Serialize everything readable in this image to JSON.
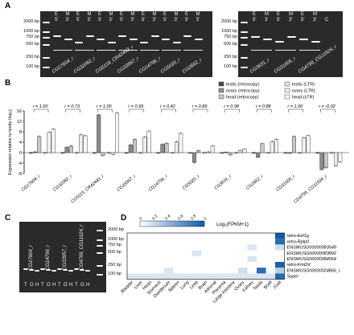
{
  "panels": {
    "A": {
      "letter": "A",
      "ladder_left": [
        "2000 bp",
        "1000 bp",
        "750 bp",
        "500 bp",
        "250 bp",
        "100 bp"
      ],
      "ladder_right": [
        "2000 bp",
        "1000 bp",
        "750 bp",
        "500 bp",
        "250 bp",
        "100 bp"
      ],
      "lane_headers_left": [
        "5'",
        "3'",
        "5'",
        "3'",
        "5'",
        "3'",
        "5'",
        "3'",
        "5'",
        "3'",
        "5'",
        "3'",
        "5'",
        "3'"
      ],
      "lane_headers_left_top": [
        "E",
        "M",
        "E",
        "M",
        "E",
        "M",
        "E",
        "M",
        "E",
        "M",
        "E",
        "M",
        "E",
        "M"
      ],
      "lane_headers_right": [
        "5'",
        "3'",
        "5'",
        "3'",
        "5'",
        "3'",
        "C"
      ],
      "lane_headers_right_top": [
        "E",
        "M",
        "E",
        "M",
        "E",
        "M",
        ""
      ],
      "gene_labels_left": [
        "CG17604_r",
        "CG32082_r",
        "CG5119_CR42443_r",
        "CG33957_r",
        "CG14796_r",
        "CG5020_r",
        "CG2662_r"
      ],
      "gene_labels_right": [
        "CG3631_r",
        "CG31605_r",
        "CG4799_CG11924_r"
      ]
    },
    "B": {
      "letter": "B",
      "legend": [
        {
          "label": "testis (retrocopy)",
          "color": "#4a4a4a"
        },
        {
          "label": "ovary (retrocopy)",
          "color": "#8c8c8c"
        },
        {
          "label": "head (retrocopy)",
          "color": "#c8c8c8"
        },
        {
          "label": "testis (LTR)",
          "color": "#e6e6e6"
        },
        {
          "label": "ovary (LTR)",
          "color": "#efefef"
        },
        {
          "label": "head (LTR)",
          "color": "#f7f7f7"
        }
      ],
      "r_values": [
        "r = 1.00",
        "r = 0.73",
        "r = 1.00",
        "r = 0.99",
        "r = 0.42",
        "r = 0.89",
        "r = 0.98",
        "r = 0.88",
        "r = 1.00",
        "r = -0.02"
      ]
    },
    "C": {
      "letter": "C",
      "ladder": [
        "2000 bp",
        "1000 bp",
        "750 bp",
        "500 bp",
        "250 bp",
        "100 bp"
      ],
      "gene_labels": [
        "CG17604_r",
        "CG14796_r",
        "CG33957_r",
        "CG4799_CG11924_r"
      ],
      "lane_letters": [
        "T",
        "O",
        "H",
        "T",
        "O",
        "H",
        "T",
        "O",
        "H",
        "T",
        "O",
        "H"
      ]
    },
    "D": {
      "letter": "D",
      "colorbar_title": "Log₂(FPKM+1)",
      "colorbar_ticks": [
        "0",
        "0.2",
        "0.4",
        "0.6",
        "0.8",
        "1"
      ],
      "row_labels": [
        "retro-Eef1g",
        "retro-Rplp0",
        "ENSMUSG00000083549",
        "ENSMUSG00000083892",
        "ENSMUSG00000084064",
        "retro-Kmt2d",
        "ENSMUSG00000024866_r",
        "Super"
      ],
      "col_labels": [
        "Bladder",
        "Liver",
        "Heart",
        "Stomach",
        "Duodenum",
        "Spleen",
        "Lung",
        "Limb",
        "Brain",
        "Adrenal",
        "Placenta",
        "Large intestine",
        "Ovary",
        "Kidney",
        "Testis",
        "Bcell",
        "2cell"
      ]
    }
  },
  "chart_data": {
    "type": "bar",
    "title": "",
    "xlabel": "",
    "ylabel": "Expression relative to testis (log₂)",
    "ylim": [
      -8,
      16
    ],
    "yticks": [
      -8,
      -4,
      0,
      4,
      8,
      12,
      16
    ],
    "categories": [
      "CG17604_r",
      "CG32082_r",
      "CG5119_CR42443_r",
      "CG33957_r",
      "CG14796_r",
      "CG5020_r",
      "CG3631_r",
      "CG2662_r",
      "CG31605_r",
      "CG4799_CG11924_r"
    ],
    "series": [
      {
        "name": "testis (retrocopy)",
        "values": [
          0,
          0,
          0,
          0,
          0,
          0,
          0,
          0,
          0,
          0
        ]
      },
      {
        "name": "ovary (retrocopy)",
        "values": [
          0.3,
          2.1,
          14.5,
          3.0,
          3.2,
          -3.8,
          0.2,
          -1.8,
          -0.2,
          -6.5
        ]
      },
      {
        "name": "head (retrocopy)",
        "values": [
          6.2,
          2.6,
          -1.2,
          5.1,
          3.6,
          0.8,
          -0.9,
          3.5,
          6.2,
          -5.8
        ]
      },
      {
        "name": "testis (LTR)",
        "values": [
          0,
          0,
          0,
          0,
          0,
          0,
          0,
          0,
          0,
          0
        ]
      },
      {
        "name": "ovary (LTR)",
        "values": [
          7.8,
          6.9,
          -0.7,
          6.0,
          4.2,
          0.3,
          0.9,
          4.3,
          5.8,
          -5.1
        ]
      },
      {
        "name": "head (LTR)",
        "values": [
          9.0,
          6.5,
          15.2,
          8.3,
          7.4,
          2.6,
          1.4,
          5.1,
          6.6,
          -3.5
        ]
      }
    ]
  },
  "heatmap_data": {
    "type": "heatmap",
    "rows": 8,
    "cols": 17,
    "values": [
      [
        0,
        0,
        0,
        0,
        0,
        0,
        0,
        0,
        0,
        0,
        0,
        0,
        0,
        0,
        0,
        0,
        1.0
      ],
      [
        0,
        0,
        0,
        0,
        0,
        0,
        0,
        0,
        0,
        0,
        0,
        0,
        0,
        0,
        0,
        0,
        0.9
      ],
      [
        0,
        0,
        0,
        0,
        0,
        0,
        0,
        0,
        0,
        0,
        0,
        0,
        0,
        0.15,
        0,
        0,
        0.2
      ],
      [
        0,
        0,
        0,
        0,
        0,
        0,
        0,
        0.15,
        0,
        0,
        0,
        0,
        0,
        0,
        0,
        0,
        0
      ],
      [
        0,
        0,
        0,
        0,
        0,
        0,
        0,
        0,
        0,
        0,
        0,
        0,
        0,
        0.15,
        0,
        0,
        0
      ],
      [
        0,
        0,
        0,
        0,
        0,
        0,
        0,
        0,
        0,
        0,
        0,
        0,
        0,
        0,
        0,
        0,
        0.95
      ],
      [
        0,
        0,
        0,
        0,
        0.15,
        0,
        0,
        0,
        0,
        0,
        0,
        0,
        0.2,
        0,
        0.9,
        0,
        0.3
      ],
      [
        0.15,
        0.15,
        0.15,
        0.15,
        0.15,
        0.15,
        0.15,
        0.15,
        0.15,
        0.15,
        0.15,
        0.15,
        0.15,
        0.15,
        0.15,
        0.15,
        0.9
      ]
    ]
  }
}
